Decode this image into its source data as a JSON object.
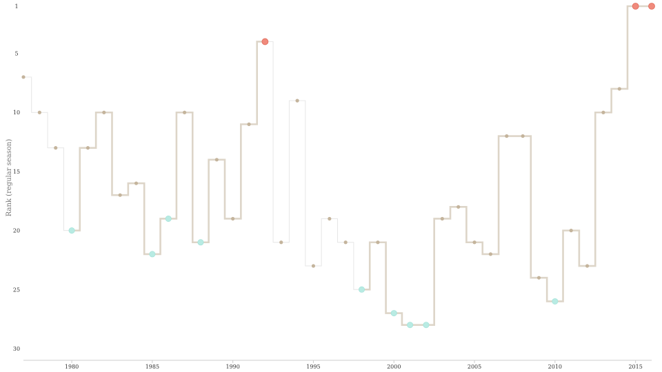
{
  "chart_data": {
    "type": "step-line",
    "ylabel": "Rank (regular season)",
    "xlabel": "",
    "x_range": [
      1977,
      2016
    ],
    "y_range": [
      1,
      30
    ],
    "y_inverted": true,
    "x_ticks": [
      1980,
      1985,
      1990,
      1995,
      2000,
      2005,
      2010,
      2015
    ],
    "y_ticks": [
      1,
      5,
      10,
      15,
      20,
      25,
      30
    ],
    "grid": false,
    "colors": {
      "line": "#ddd5c8",
      "line_thin": "#e6e6e6",
      "point": "#c4b49c",
      "highlight_low": "#b8ebe3",
      "highlight_top": "#f08a7c"
    },
    "series": [
      {
        "points": [
          {
            "x": 1977,
            "y": 7,
            "kind": "normal"
          },
          {
            "x": 1978,
            "y": 10,
            "kind": "normal"
          },
          {
            "x": 1979,
            "y": 13,
            "kind": "normal"
          },
          {
            "x": 1980,
            "y": 20,
            "kind": "low"
          },
          {
            "x": 1981,
            "y": 13,
            "kind": "normal"
          },
          {
            "x": 1982,
            "y": 10,
            "kind": "normal"
          },
          {
            "x": 1983,
            "y": 17,
            "kind": "normal"
          },
          {
            "x": 1984,
            "y": 16,
            "kind": "normal"
          },
          {
            "x": 1985,
            "y": 22,
            "kind": "low"
          },
          {
            "x": 1986,
            "y": 19,
            "kind": "low"
          },
          {
            "x": 1987,
            "y": 10,
            "kind": "normal"
          },
          {
            "x": 1988,
            "y": 21,
            "kind": "low"
          },
          {
            "x": 1989,
            "y": 14,
            "kind": "normal"
          },
          {
            "x": 1990,
            "y": 19,
            "kind": "normal"
          },
          {
            "x": 1991,
            "y": 11,
            "kind": "normal"
          },
          {
            "x": 1992,
            "y": 4,
            "kind": "top"
          },
          {
            "x": 1993,
            "y": 21,
            "kind": "normal"
          },
          {
            "x": 1994,
            "y": 9,
            "kind": "normal"
          },
          {
            "x": 1995,
            "y": 23,
            "kind": "normal"
          },
          {
            "x": 1996,
            "y": 19,
            "kind": "normal"
          },
          {
            "x": 1997,
            "y": 21,
            "kind": "normal"
          },
          {
            "x": 1998,
            "y": 25,
            "kind": "low"
          },
          {
            "x": 1999,
            "y": 21,
            "kind": "normal"
          },
          {
            "x": 2000,
            "y": 27,
            "kind": "low"
          },
          {
            "x": 2001,
            "y": 28,
            "kind": "low"
          },
          {
            "x": 2002,
            "y": 28,
            "kind": "low"
          },
          {
            "x": 2003,
            "y": 19,
            "kind": "normal"
          },
          {
            "x": 2004,
            "y": 18,
            "kind": "normal"
          },
          {
            "x": 2005,
            "y": 21,
            "kind": "normal"
          },
          {
            "x": 2006,
            "y": 22,
            "kind": "normal"
          },
          {
            "x": 2007,
            "y": 12,
            "kind": "normal"
          },
          {
            "x": 2008,
            "y": 12,
            "kind": "normal"
          },
          {
            "x": 2009,
            "y": 24,
            "kind": "normal"
          },
          {
            "x": 2010,
            "y": 26,
            "kind": "low"
          },
          {
            "x": 2011,
            "y": 20,
            "kind": "normal"
          },
          {
            "x": 2012,
            "y": 23,
            "kind": "normal"
          },
          {
            "x": 2013,
            "y": 10,
            "kind": "normal"
          },
          {
            "x": 2014,
            "y": 8,
            "kind": "normal"
          },
          {
            "x": 2015,
            "y": 1,
            "kind": "top"
          },
          {
            "x": 2016,
            "y": 1,
            "kind": "top"
          }
        ],
        "thin_segments": [
          [
            1977,
            1980
          ],
          [
            1992,
            1996
          ],
          [
            1996,
            1998
          ]
        ]
      }
    ]
  }
}
